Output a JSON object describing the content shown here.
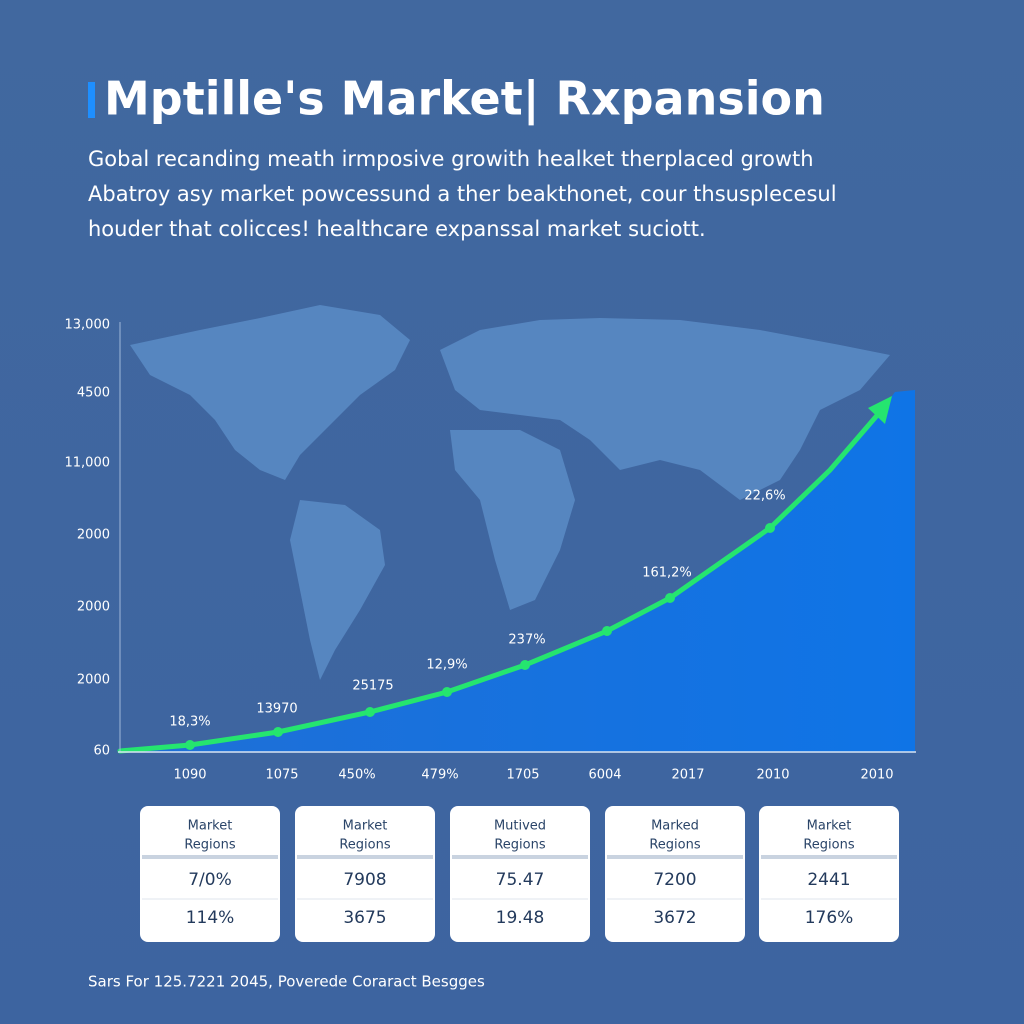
{
  "header": {
    "title": "Mptille's Market| Rxpansion",
    "subtitle": [
      "Gobal recanding meath irmposive growith healket therplaced growth",
      "Abatroy asy market powcessund a ther beakthonet, cour thsusplecesul",
      "houder that colicces! healthcare expanssal market suciott."
    ]
  },
  "graphic": {
    "y_axis_labels": [
      "13,000",
      "4500",
      "11,000",
      "2000",
      "2000",
      "2000",
      "60"
    ],
    "x_axis_labels": [
      "1090",
      "1075",
      "450%",
      "479%",
      "1705",
      "6004",
      "2017",
      "2010",
      "2010"
    ],
    "point_labels": [
      "18,3%",
      "13970",
      "25175",
      "12,9%",
      "237%",
      "161,2%",
      "22,6%"
    ]
  },
  "cards": [
    {
      "header": [
        "Market",
        "Regions"
      ],
      "rows": [
        "7/0%",
        "114%"
      ]
    },
    {
      "header": [
        "Market",
        "Regions"
      ],
      "rows": [
        "7908",
        "3675"
      ]
    },
    {
      "header": [
        "Mutived",
        "Regions"
      ],
      "rows": [
        "75.47",
        "19.48"
      ]
    },
    {
      "header": [
        "Marked",
        "Regions"
      ],
      "rows": [
        "7200",
        "3672"
      ]
    },
    {
      "header": [
        "Market",
        "Regions"
      ],
      "rows": [
        "2441",
        "176%"
      ]
    }
  ],
  "footer": "Sars For 125.7221 2045, Poverede Coraract Besgges"
}
